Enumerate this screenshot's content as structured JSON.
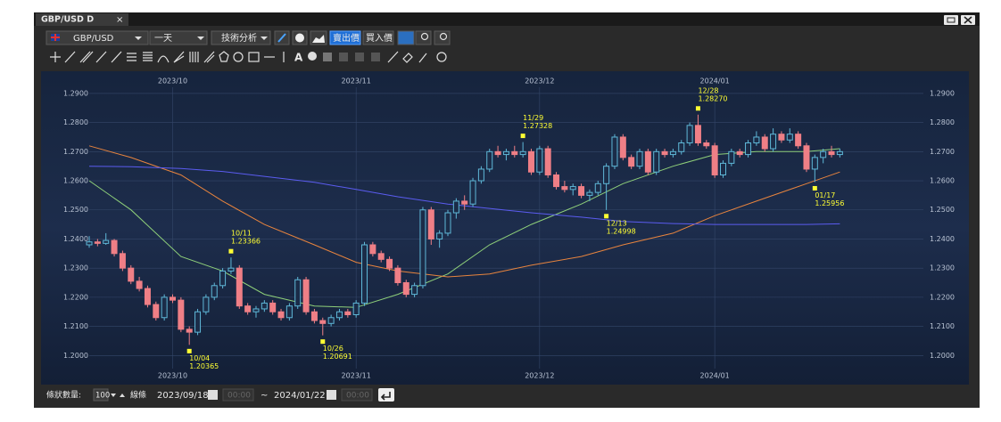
{
  "window": {
    "tab": "GBP/USD D",
    "close": "×"
  },
  "toolbar": {
    "symbol": "GBP/USD",
    "period": "一天",
    "analysis": "技術分析",
    "sell": "賣出價",
    "buy": "買入價"
  },
  "footer": {
    "count_label": "條狀數量:",
    "count": "100",
    "lines": "線條",
    "from_date": "2023/09/18",
    "from_time": "00:00",
    "sep": "~",
    "to_date": "2024/01/22",
    "to_time": "00:00"
  },
  "chart_data": {
    "type": "candlestick",
    "xlim": [
      -5.35,
      100.55
    ],
    "ylim": [
      1.19,
      1.297
    ],
    "xticks": [
      {
        "value": 10,
        "label": "2023/10"
      },
      {
        "value": 32,
        "label": "2023/11"
      },
      {
        "value": 54,
        "label": "2023/12"
      },
      {
        "value": 75,
        "label": "2024/01"
      }
    ],
    "yticks": [
      {
        "value": 1.2,
        "label": "1.2000"
      },
      {
        "value": 1.21,
        "label": "1.2100"
      },
      {
        "value": 1.22,
        "label": "1.2200"
      },
      {
        "value": 1.23,
        "label": "1.2300"
      },
      {
        "value": 1.24,
        "label": "1.2400"
      },
      {
        "value": 1.25,
        "label": "1.2500"
      },
      {
        "value": 1.26,
        "label": "1.2600"
      },
      {
        "value": 1.27,
        "label": "1.2700"
      },
      {
        "value": 1.28,
        "label": "1.2800"
      },
      {
        "value": 1.29,
        "label": "1.2900"
      }
    ],
    "grid": true,
    "up_color": "#5fb8d8",
    "down_color": "#ef7f86",
    "candles": [
      [
        1.238,
        1.241,
        1.237,
        1.239
      ],
      [
        1.239,
        1.24,
        1.2375,
        1.2385
      ],
      [
        1.2385,
        1.242,
        1.238,
        1.2395
      ],
      [
        1.2395,
        1.24,
        1.234,
        1.235
      ],
      [
        1.235,
        1.236,
        1.229,
        1.23
      ],
      [
        1.23,
        1.231,
        1.2245,
        1.2255
      ],
      [
        1.2255,
        1.227,
        1.222,
        1.223
      ],
      [
        1.223,
        1.224,
        1.2165,
        1.2175
      ],
      [
        1.2175,
        1.2185,
        1.212,
        1.213
      ],
      [
        1.213,
        1.221,
        1.212,
        1.22
      ],
      [
        1.22,
        1.221,
        1.218,
        1.219
      ],
      [
        1.219,
        1.22,
        1.208,
        1.209
      ],
      [
        1.209,
        1.21,
        1.20365,
        1.208
      ],
      [
        1.208,
        1.216,
        1.207,
        1.215
      ],
      [
        1.215,
        1.221,
        1.214,
        1.22
      ],
      [
        1.22,
        1.225,
        1.219,
        1.224
      ],
      [
        1.224,
        1.23,
        1.223,
        1.229
      ],
      [
        1.229,
        1.23366,
        1.228,
        1.23
      ],
      [
        1.23,
        1.231,
        1.216,
        1.217
      ],
      [
        1.217,
        1.218,
        1.214,
        1.215
      ],
      [
        1.215,
        1.217,
        1.213,
        1.216
      ],
      [
        1.216,
        1.219,
        1.215,
        1.218
      ],
      [
        1.218,
        1.219,
        1.214,
        1.215
      ],
      [
        1.215,
        1.216,
        1.212,
        1.213
      ],
      [
        1.213,
        1.218,
        1.212,
        1.217
      ],
      [
        1.217,
        1.227,
        1.216,
        1.226
      ],
      [
        1.226,
        1.227,
        1.214,
        1.215
      ],
      [
        1.215,
        1.216,
        1.211,
        1.212
      ],
      [
        1.212,
        1.213,
        1.20691,
        1.211
      ],
      [
        1.211,
        1.214,
        1.21,
        1.213
      ],
      [
        1.213,
        1.216,
        1.212,
        1.215
      ],
      [
        1.215,
        1.216,
        1.213,
        1.214
      ],
      [
        1.214,
        1.219,
        1.213,
        1.218
      ],
      [
        1.218,
        1.239,
        1.217,
        1.238
      ],
      [
        1.238,
        1.239,
        1.234,
        1.235
      ],
      [
        1.235,
        1.236,
        1.232,
        1.233
      ],
      [
        1.233,
        1.234,
        1.229,
        1.23
      ],
      [
        1.23,
        1.231,
        1.224,
        1.225
      ],
      [
        1.225,
        1.226,
        1.22,
        1.221
      ],
      [
        1.221,
        1.225,
        1.22,
        1.224
      ],
      [
        1.224,
        1.251,
        1.223,
        1.25
      ],
      [
        1.25,
        1.251,
        1.238,
        1.24
      ],
      [
        1.24,
        1.243,
        1.237,
        1.242
      ],
      [
        1.242,
        1.25,
        1.241,
        1.249
      ],
      [
        1.249,
        1.254,
        1.247,
        1.253
      ],
      [
        1.253,
        1.255,
        1.25,
        1.252
      ],
      [
        1.252,
        1.261,
        1.251,
        1.26
      ],
      [
        1.26,
        1.265,
        1.259,
        1.264
      ],
      [
        1.264,
        1.271,
        1.263,
        1.27
      ],
      [
        1.27,
        1.272,
        1.268,
        1.269
      ],
      [
        1.269,
        1.271,
        1.267,
        1.27
      ],
      [
        1.27,
        1.272,
        1.268,
        1.269
      ],
      [
        1.269,
        1.27328,
        1.268,
        1.27
      ],
      [
        1.27,
        1.271,
        1.262,
        1.263
      ],
      [
        1.263,
        1.272,
        1.262,
        1.271
      ],
      [
        1.271,
        1.272,
        1.261,
        1.262
      ],
      [
        1.262,
        1.263,
        1.257,
        1.258
      ],
      [
        1.258,
        1.26,
        1.256,
        1.257
      ],
      [
        1.257,
        1.259,
        1.255,
        1.258
      ],
      [
        1.258,
        1.259,
        1.254,
        1.255
      ],
      [
        1.255,
        1.257,
        1.253,
        1.256
      ],
      [
        1.256,
        1.26,
        1.255,
        1.259
      ],
      [
        1.259,
        1.266,
        1.24998,
        1.265
      ],
      [
        1.265,
        1.276,
        1.264,
        1.275
      ],
      [
        1.275,
        1.276,
        1.267,
        1.268
      ],
      [
        1.268,
        1.269,
        1.264,
        1.265
      ],
      [
        1.265,
        1.271,
        1.264,
        1.27
      ],
      [
        1.27,
        1.271,
        1.262,
        1.263
      ],
      [
        1.263,
        1.271,
        1.262,
        1.27
      ],
      [
        1.27,
        1.271,
        1.268,
        1.269
      ],
      [
        1.269,
        1.271,
        1.268,
        1.27
      ],
      [
        1.27,
        1.274,
        1.269,
        1.273
      ],
      [
        1.273,
        1.28,
        1.272,
        1.279
      ],
      [
        1.279,
        1.2827,
        1.272,
        1.273
      ],
      [
        1.273,
        1.274,
        1.271,
        1.272
      ],
      [
        1.272,
        1.273,
        1.261,
        1.262
      ],
      [
        1.262,
        1.267,
        1.261,
        1.266
      ],
      [
        1.266,
        1.271,
        1.265,
        1.27
      ],
      [
        1.27,
        1.271,
        1.268,
        1.269
      ],
      [
        1.269,
        1.274,
        1.268,
        1.273
      ],
      [
        1.273,
        1.277,
        1.272,
        1.275
      ],
      [
        1.275,
        1.276,
        1.27,
        1.271
      ],
      [
        1.271,
        1.278,
        1.27,
        1.276
      ],
      [
        1.276,
        1.277,
        1.273,
        1.274
      ],
      [
        1.274,
        1.278,
        1.273,
        1.276
      ],
      [
        1.276,
        1.277,
        1.271,
        1.272
      ],
      [
        1.272,
        1.273,
        1.263,
        1.264
      ],
      [
        1.264,
        1.269,
        1.25956,
        1.268
      ],
      [
        1.268,
        1.271,
        1.266,
        1.27
      ],
      [
        1.27,
        1.272,
        1.268,
        1.269
      ],
      [
        1.269,
        1.271,
        1.268,
        1.27
      ]
    ],
    "series": [
      {
        "color": "#8fd07a",
        "x": [
          0,
          5,
          11,
          16,
          21,
          27,
          32,
          37,
          43,
          48,
          53,
          59,
          64,
          70,
          75,
          80,
          86,
          90
        ],
        "values": [
          1.26,
          1.25,
          1.234,
          1.229,
          1.221,
          1.217,
          1.2165,
          1.221,
          1.228,
          1.238,
          1.245,
          1.252,
          1.259,
          1.265,
          1.269,
          1.27,
          1.27,
          1.271
        ]
      },
      {
        "color": "#e8843e",
        "x": [
          0,
          5,
          11,
          16,
          21,
          27,
          32,
          37,
          43,
          48,
          53,
          59,
          64,
          70,
          75,
          80,
          86,
          90
        ],
        "values": [
          1.272,
          1.268,
          1.262,
          1.253,
          1.245,
          1.238,
          1.232,
          1.229,
          1.227,
          1.228,
          1.231,
          1.234,
          1.238,
          1.242,
          1.248,
          1.253,
          1.259,
          1.263
        ]
      },
      {
        "color": "#5b5cf0",
        "x": [
          0,
          5,
          11,
          16,
          21,
          27,
          32,
          37,
          43,
          48,
          53,
          59,
          64,
          70,
          75,
          80,
          86,
          90
        ],
        "values": [
          1.265,
          1.2648,
          1.2642,
          1.2632,
          1.2615,
          1.2595,
          1.257,
          1.2545,
          1.252,
          1.2505,
          1.249,
          1.2475,
          1.246,
          1.2453,
          1.245,
          1.245,
          1.245,
          1.2452
        ]
      }
    ],
    "annotations": [
      {
        "x": 12,
        "date": "10/04",
        "label": "1.20365",
        "value": 1.20365,
        "side": "low"
      },
      {
        "x": 17,
        "date": "10/11",
        "label": "1.23366",
        "value": 1.23366,
        "side": "high"
      },
      {
        "x": 28,
        "date": "10/26",
        "label": "1.20691",
        "value": 1.20691,
        "side": "low"
      },
      {
        "x": 52,
        "date": "11/29",
        "label": "1.27328",
        "value": 1.27328,
        "side": "high"
      },
      {
        "x": 62,
        "date": "12/13",
        "label": "1.24998",
        "value": 1.24998,
        "side": "low"
      },
      {
        "x": 73,
        "date": "12/28",
        "label": "1.28270",
        "value": 1.2827,
        "side": "high"
      },
      {
        "x": 87,
        "date": "01/17",
        "label": "1.25956",
        "value": 1.25956,
        "side": "low"
      }
    ]
  }
}
